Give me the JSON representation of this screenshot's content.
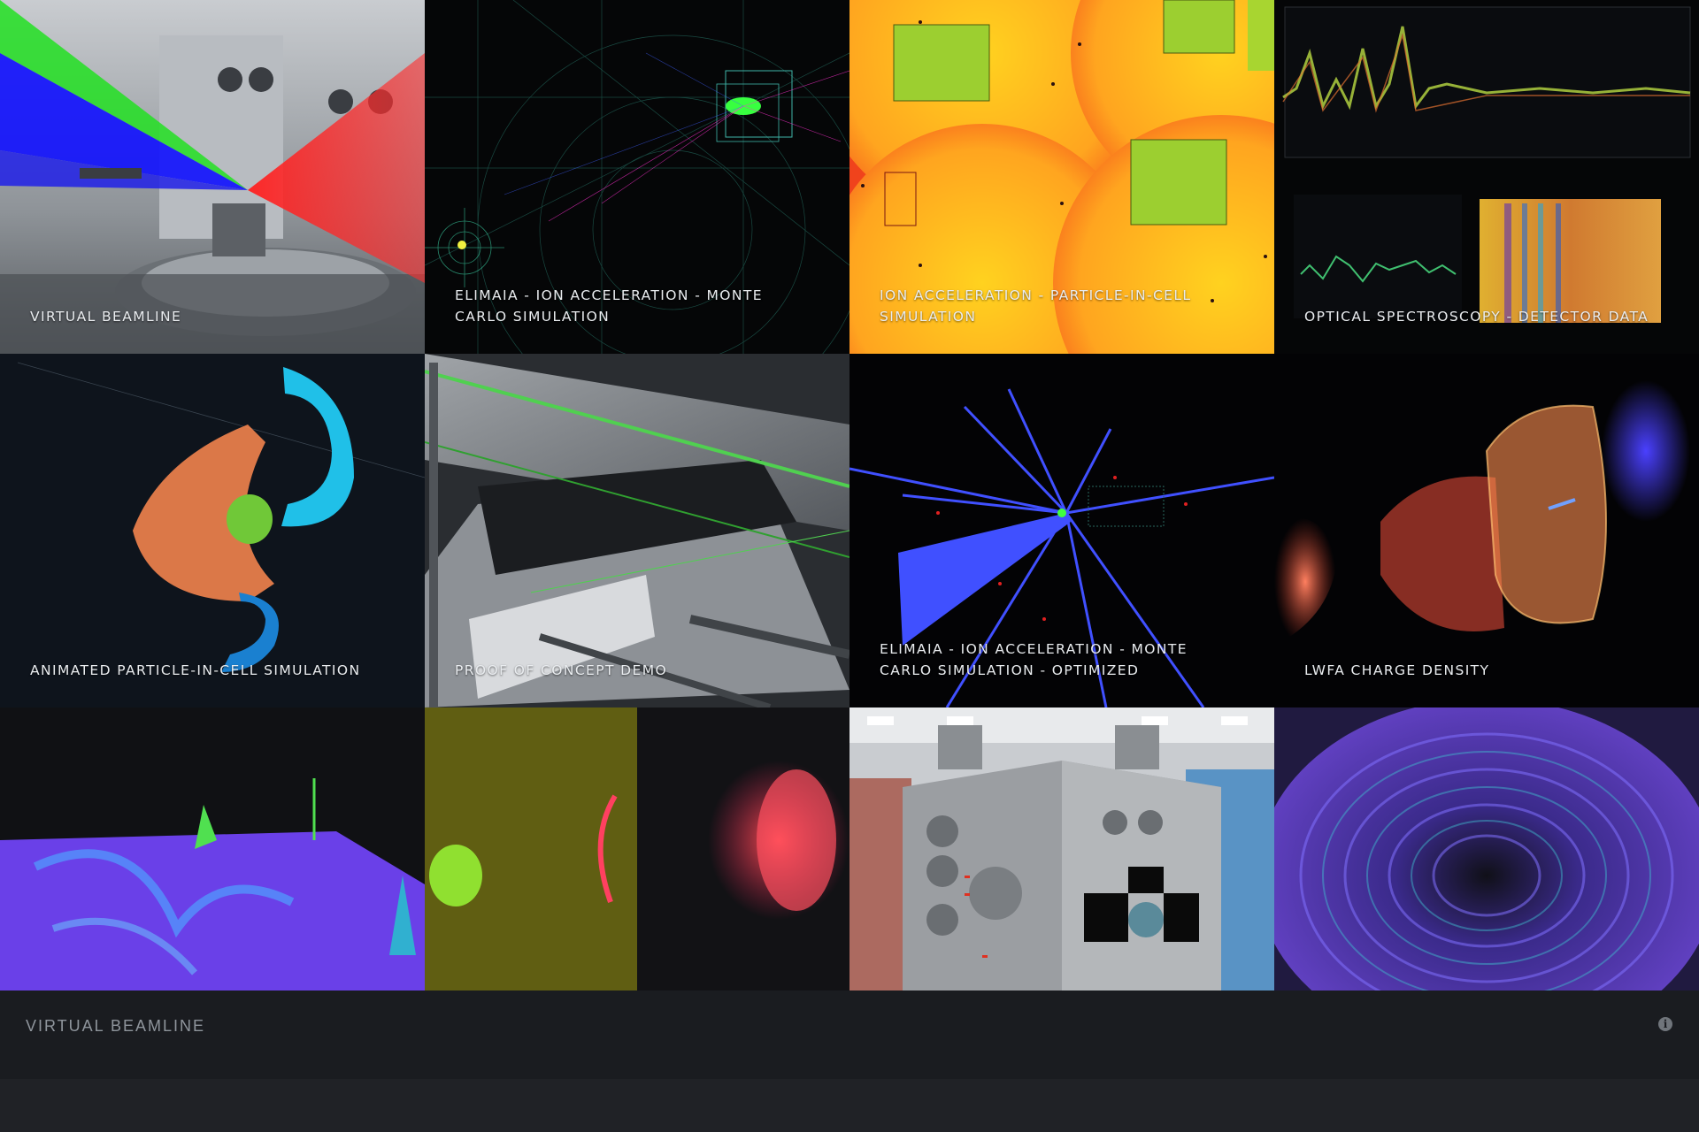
{
  "gallery": {
    "tiles": [
      {
        "caption": "Virtual Beamline"
      },
      {
        "caption": "ELIMAIA - Ion Acceleration - Monte Carlo Simulation"
      },
      {
        "caption": "Ion Acceleration - Particle-in-cell Simulation"
      },
      {
        "caption": "Optical Spectroscopy - Detector Data"
      },
      {
        "caption": "Animated Particle-in-cell Simulation"
      },
      {
        "caption": "Proof of Concept Demo"
      },
      {
        "caption": "ELIMAIA - Ion Acceleration - Monte Carlo Simulation - Optimized"
      },
      {
        "caption": "LWFA Charge Density"
      },
      {
        "caption": ""
      },
      {
        "caption": ""
      },
      {
        "caption": ""
      },
      {
        "caption": ""
      }
    ]
  },
  "info_bar": {
    "title": "Virtual Beamline",
    "icon": "info-icon"
  },
  "colors": {
    "page_bg": "#202226",
    "info_bar_bg": "#1a1c20",
    "caption_text": "#e9ecef",
    "info_title_text": "#8f959c"
  }
}
